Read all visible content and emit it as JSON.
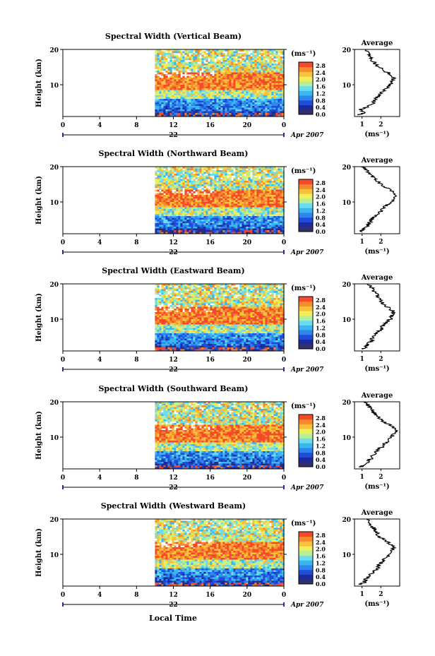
{
  "figure": {
    "shared_xlabel": "Local Time",
    "date_suffix": "Apr 2007",
    "colorbar_unit": "(ms⁻¹)",
    "colorbar_ticks": [
      "0.0",
      "0.4",
      "0.8",
      "1.2",
      "1.6",
      "2.0",
      "2.4",
      "2.8"
    ],
    "average_title": "Average",
    "average_xlabel": "(ms⁻¹)",
    "height_label": "Height (km)",
    "colormap": [
      "#30306a",
      "#1c2a9c",
      "#1f4cd8",
      "#2c86ee",
      "#3ab7f0",
      "#6bdced",
      "#b6ee9a",
      "#f0ee5a",
      "#f7c23a",
      "#f78a2c",
      "#f4492a"
    ]
  },
  "chart_data": [
    {
      "type": "heatmap",
      "title": "Spectral Width (Vertical Beam)",
      "x_ticks": [
        "0",
        "4",
        "8",
        "12",
        "16",
        "20",
        "0"
      ],
      "day_label": "22",
      "y_ticks": [
        "20",
        "10"
      ],
      "xlim_hours": [
        0,
        24
      ],
      "ylim_km": [
        1,
        20
      ],
      "data_start_hour": 10,
      "zlim": [
        0.0,
        3.0
      ],
      "average": {
        "xlim": [
          0.6,
          3.0
        ],
        "x_ticks": [
          "1",
          "2"
        ],
        "height_km": [
          1.5,
          2,
          3,
          4,
          5,
          6,
          7,
          8,
          9,
          10,
          11,
          12,
          13,
          14,
          15,
          16,
          17,
          18,
          19,
          20
        ],
        "values": [
          0.8,
          1.1,
          0.9,
          1.4,
          1.6,
          1.7,
          1.9,
          2.1,
          2.3,
          2.5,
          2.6,
          2.7,
          2.5,
          2.2,
          1.9,
          1.7,
          1.5,
          1.4,
          1.3,
          1.2
        ]
      }
    },
    {
      "type": "heatmap",
      "title": "Spectral Width (Northward Beam)",
      "x_ticks": [
        "0",
        "4",
        "8",
        "12",
        "16",
        "20",
        "0"
      ],
      "day_label": "22",
      "y_ticks": [
        "20",
        "10"
      ],
      "xlim_hours": [
        0,
        24
      ],
      "ylim_km": [
        1,
        20
      ],
      "data_start_hour": 10,
      "zlim": [
        0.0,
        3.0
      ],
      "average": {
        "xlim": [
          0.6,
          3.0
        ],
        "x_ticks": [
          "1",
          "2"
        ],
        "height_km": [
          1.5,
          2,
          3,
          4,
          5,
          6,
          7,
          8,
          9,
          10,
          11,
          12,
          13,
          14,
          15,
          16,
          17,
          18,
          19,
          20
        ],
        "values": [
          0.9,
          1.0,
          1.2,
          1.4,
          1.5,
          1.7,
          1.9,
          2.1,
          2.3,
          2.5,
          2.7,
          2.8,
          2.6,
          2.3,
          2.0,
          1.8,
          1.6,
          1.4,
          1.2,
          1.1
        ]
      }
    },
    {
      "type": "heatmap",
      "title": "Spectral Width (Eastward Beam)",
      "x_ticks": [
        "0",
        "4",
        "8",
        "12",
        "16",
        "20",
        "0"
      ],
      "day_label": "22",
      "y_ticks": [
        "20",
        "10"
      ],
      "xlim_hours": [
        0,
        24
      ],
      "ylim_km": [
        1,
        20
      ],
      "data_start_hour": 10,
      "zlim": [
        0.0,
        3.0
      ],
      "average": {
        "xlim": [
          0.6,
          3.0
        ],
        "x_ticks": [
          "1",
          "2"
        ],
        "height_km": [
          1.5,
          2,
          3,
          4,
          5,
          6,
          7,
          8,
          9,
          10,
          11,
          12,
          13,
          14,
          15,
          16,
          17,
          18,
          19,
          20
        ],
        "values": [
          1.0,
          1.2,
          1.3,
          1.5,
          1.6,
          1.8,
          2.0,
          2.1,
          2.3,
          2.5,
          2.6,
          2.7,
          2.5,
          2.2,
          2.0,
          1.9,
          1.8,
          1.6,
          1.5,
          1.3
        ]
      }
    },
    {
      "type": "heatmap",
      "title": "Spectral Width (Southward Beam)",
      "x_ticks": [
        "0",
        "4",
        "8",
        "12",
        "16",
        "20",
        "0"
      ],
      "day_label": "22",
      "y_ticks": [
        "20",
        "10"
      ],
      "xlim_hours": [
        0,
        24
      ],
      "ylim_km": [
        1,
        20
      ],
      "data_start_hour": 10,
      "zlim": [
        0.0,
        3.0
      ],
      "average": {
        "xlim": [
          0.6,
          3.0
        ],
        "x_ticks": [
          "1",
          "2"
        ],
        "height_km": [
          1.5,
          2,
          3,
          4,
          5,
          6,
          7,
          8,
          9,
          10,
          11,
          12,
          13,
          14,
          15,
          16,
          17,
          18,
          19,
          20
        ],
        "values": [
          0.9,
          1.1,
          1.3,
          1.5,
          1.6,
          1.8,
          2.0,
          2.2,
          2.4,
          2.6,
          2.7,
          2.8,
          2.6,
          2.3,
          2.0,
          1.8,
          1.6,
          1.5,
          1.3,
          1.2
        ]
      }
    },
    {
      "type": "heatmap",
      "title": "Spectral Width (Westward Beam)",
      "x_ticks": [
        "0",
        "4",
        "8",
        "12",
        "16",
        "20",
        "0"
      ],
      "day_label": "22",
      "y_ticks": [
        "20",
        "10"
      ],
      "xlim_hours": [
        0,
        24
      ],
      "ylim_km": [
        1,
        20
      ],
      "data_start_hour": 10,
      "zlim": [
        0.0,
        3.0
      ],
      "average": {
        "xlim": [
          0.6,
          3.0
        ],
        "x_ticks": [
          "1",
          "2"
        ],
        "height_km": [
          1.5,
          2,
          3,
          4,
          5,
          6,
          7,
          8,
          9,
          10,
          11,
          12,
          13,
          14,
          15,
          16,
          17,
          18,
          19,
          20
        ],
        "values": [
          0.9,
          1.1,
          1.2,
          1.4,
          1.6,
          1.8,
          1.9,
          2.1,
          2.3,
          2.5,
          2.6,
          2.7,
          2.5,
          2.2,
          1.9,
          1.8,
          1.7,
          1.5,
          1.4,
          1.3
        ]
      }
    }
  ]
}
